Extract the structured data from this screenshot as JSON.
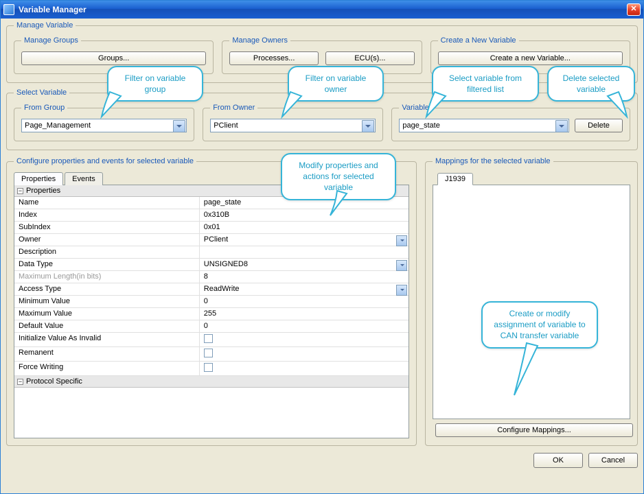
{
  "window": {
    "title": "Variable Manager"
  },
  "manage": {
    "legend": "Manage Variable",
    "groups": {
      "legend": "Manage Groups",
      "button": "Groups..."
    },
    "owners": {
      "legend": "Manage Owners",
      "processes": "Processes...",
      "ecus": "ECU(s)..."
    },
    "create": {
      "legend": "Create a New Variable",
      "button": "Create a new Variable..."
    }
  },
  "select": {
    "legend": "Select Variable",
    "group": {
      "legend": "From Group",
      "value": "Page_Management"
    },
    "owner": {
      "legend": "From Owner",
      "value": "PClient"
    },
    "variable": {
      "legend": "Variable",
      "value": "page_state",
      "delete": "Delete"
    }
  },
  "config": {
    "legend": "Configure properties and events for selected variable",
    "tabs": {
      "properties": "Properties",
      "events": "Events"
    },
    "groups": {
      "properties": "Properties",
      "protocol": "Protocol Specific"
    },
    "rows": [
      {
        "label": "Name",
        "value": "page_state"
      },
      {
        "label": "Index",
        "value": "0x310B"
      },
      {
        "label": "SubIndex",
        "value": "0x01"
      },
      {
        "label": "Owner",
        "value": "PClient",
        "combo": true
      },
      {
        "label": "Description",
        "value": ""
      },
      {
        "label": "Data Type",
        "value": "UNSIGNED8",
        "combo": true
      },
      {
        "label": "Maximum Length(in bits)",
        "value": "8",
        "disabled": true
      },
      {
        "label": "Access Type",
        "value": "ReadWrite",
        "combo": true
      },
      {
        "label": "Minimum Value",
        "value": "0"
      },
      {
        "label": "Maximum Value",
        "value": "255"
      },
      {
        "label": "Default Value",
        "value": "0"
      },
      {
        "label": "Initialize Value As Invalid",
        "value": "",
        "check": true
      },
      {
        "label": "Remanent",
        "value": "",
        "check": true
      },
      {
        "label": "Force Writing",
        "value": "",
        "check": true
      }
    ]
  },
  "mappings": {
    "legend": "Mappings for the selected variable",
    "tab": "J1939",
    "button": "Configure Mappings..."
  },
  "dialog": {
    "ok": "OK",
    "cancel": "Cancel"
  },
  "callouts": {
    "c1": "Filter on variable group",
    "c2": "Filter on variable owner",
    "c3": "Select variable from filtered list",
    "c4": "Delete selected variable",
    "c5": "Modify properties and actions for selected variable",
    "c6": "Create or modify assignment of variable to CAN transfer variable"
  }
}
